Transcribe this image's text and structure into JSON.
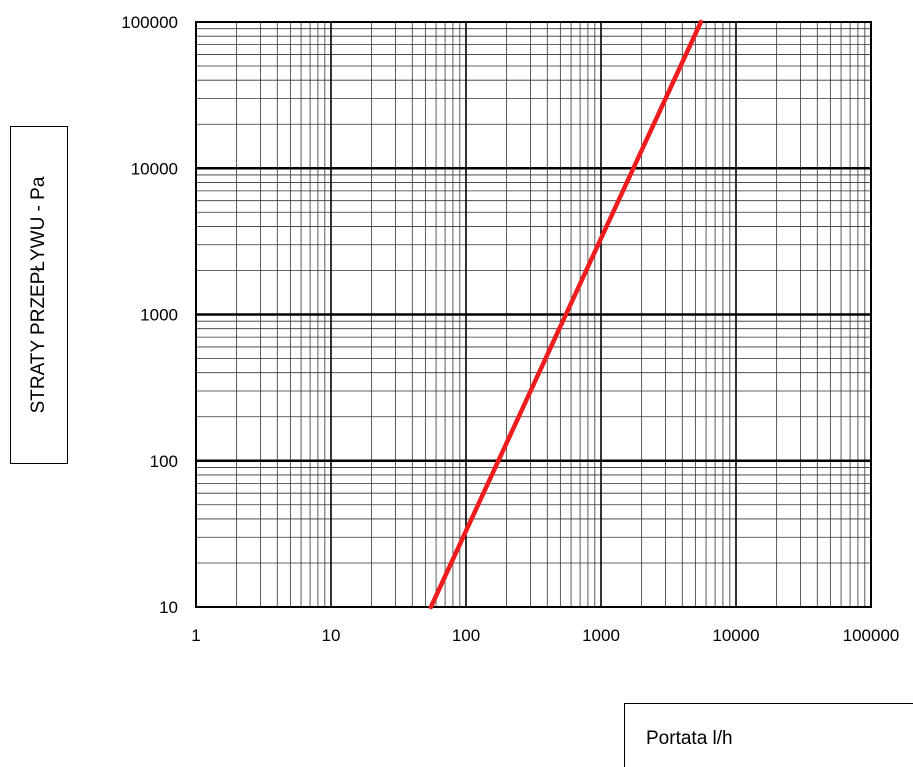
{
  "chart_data": {
    "type": "line",
    "xlabel": "Portata l/h",
    "ylabel": "STRATY PRZEPŁYWU - Pa",
    "x_scale": "log",
    "y_scale": "log",
    "xlim": [
      1,
      100000
    ],
    "ylim": [
      10,
      100000
    ],
    "x_ticks": [
      "1",
      "10",
      "100",
      "1000",
      "10000",
      "100000"
    ],
    "y_ticks": [
      "10",
      "100",
      "1000",
      "10000",
      "100000"
    ],
    "grid": true,
    "series": [
      {
        "color": "#ee1c1c",
        "x": [
          55,
          5500
        ],
        "y": [
          10,
          100000
        ]
      }
    ]
  }
}
